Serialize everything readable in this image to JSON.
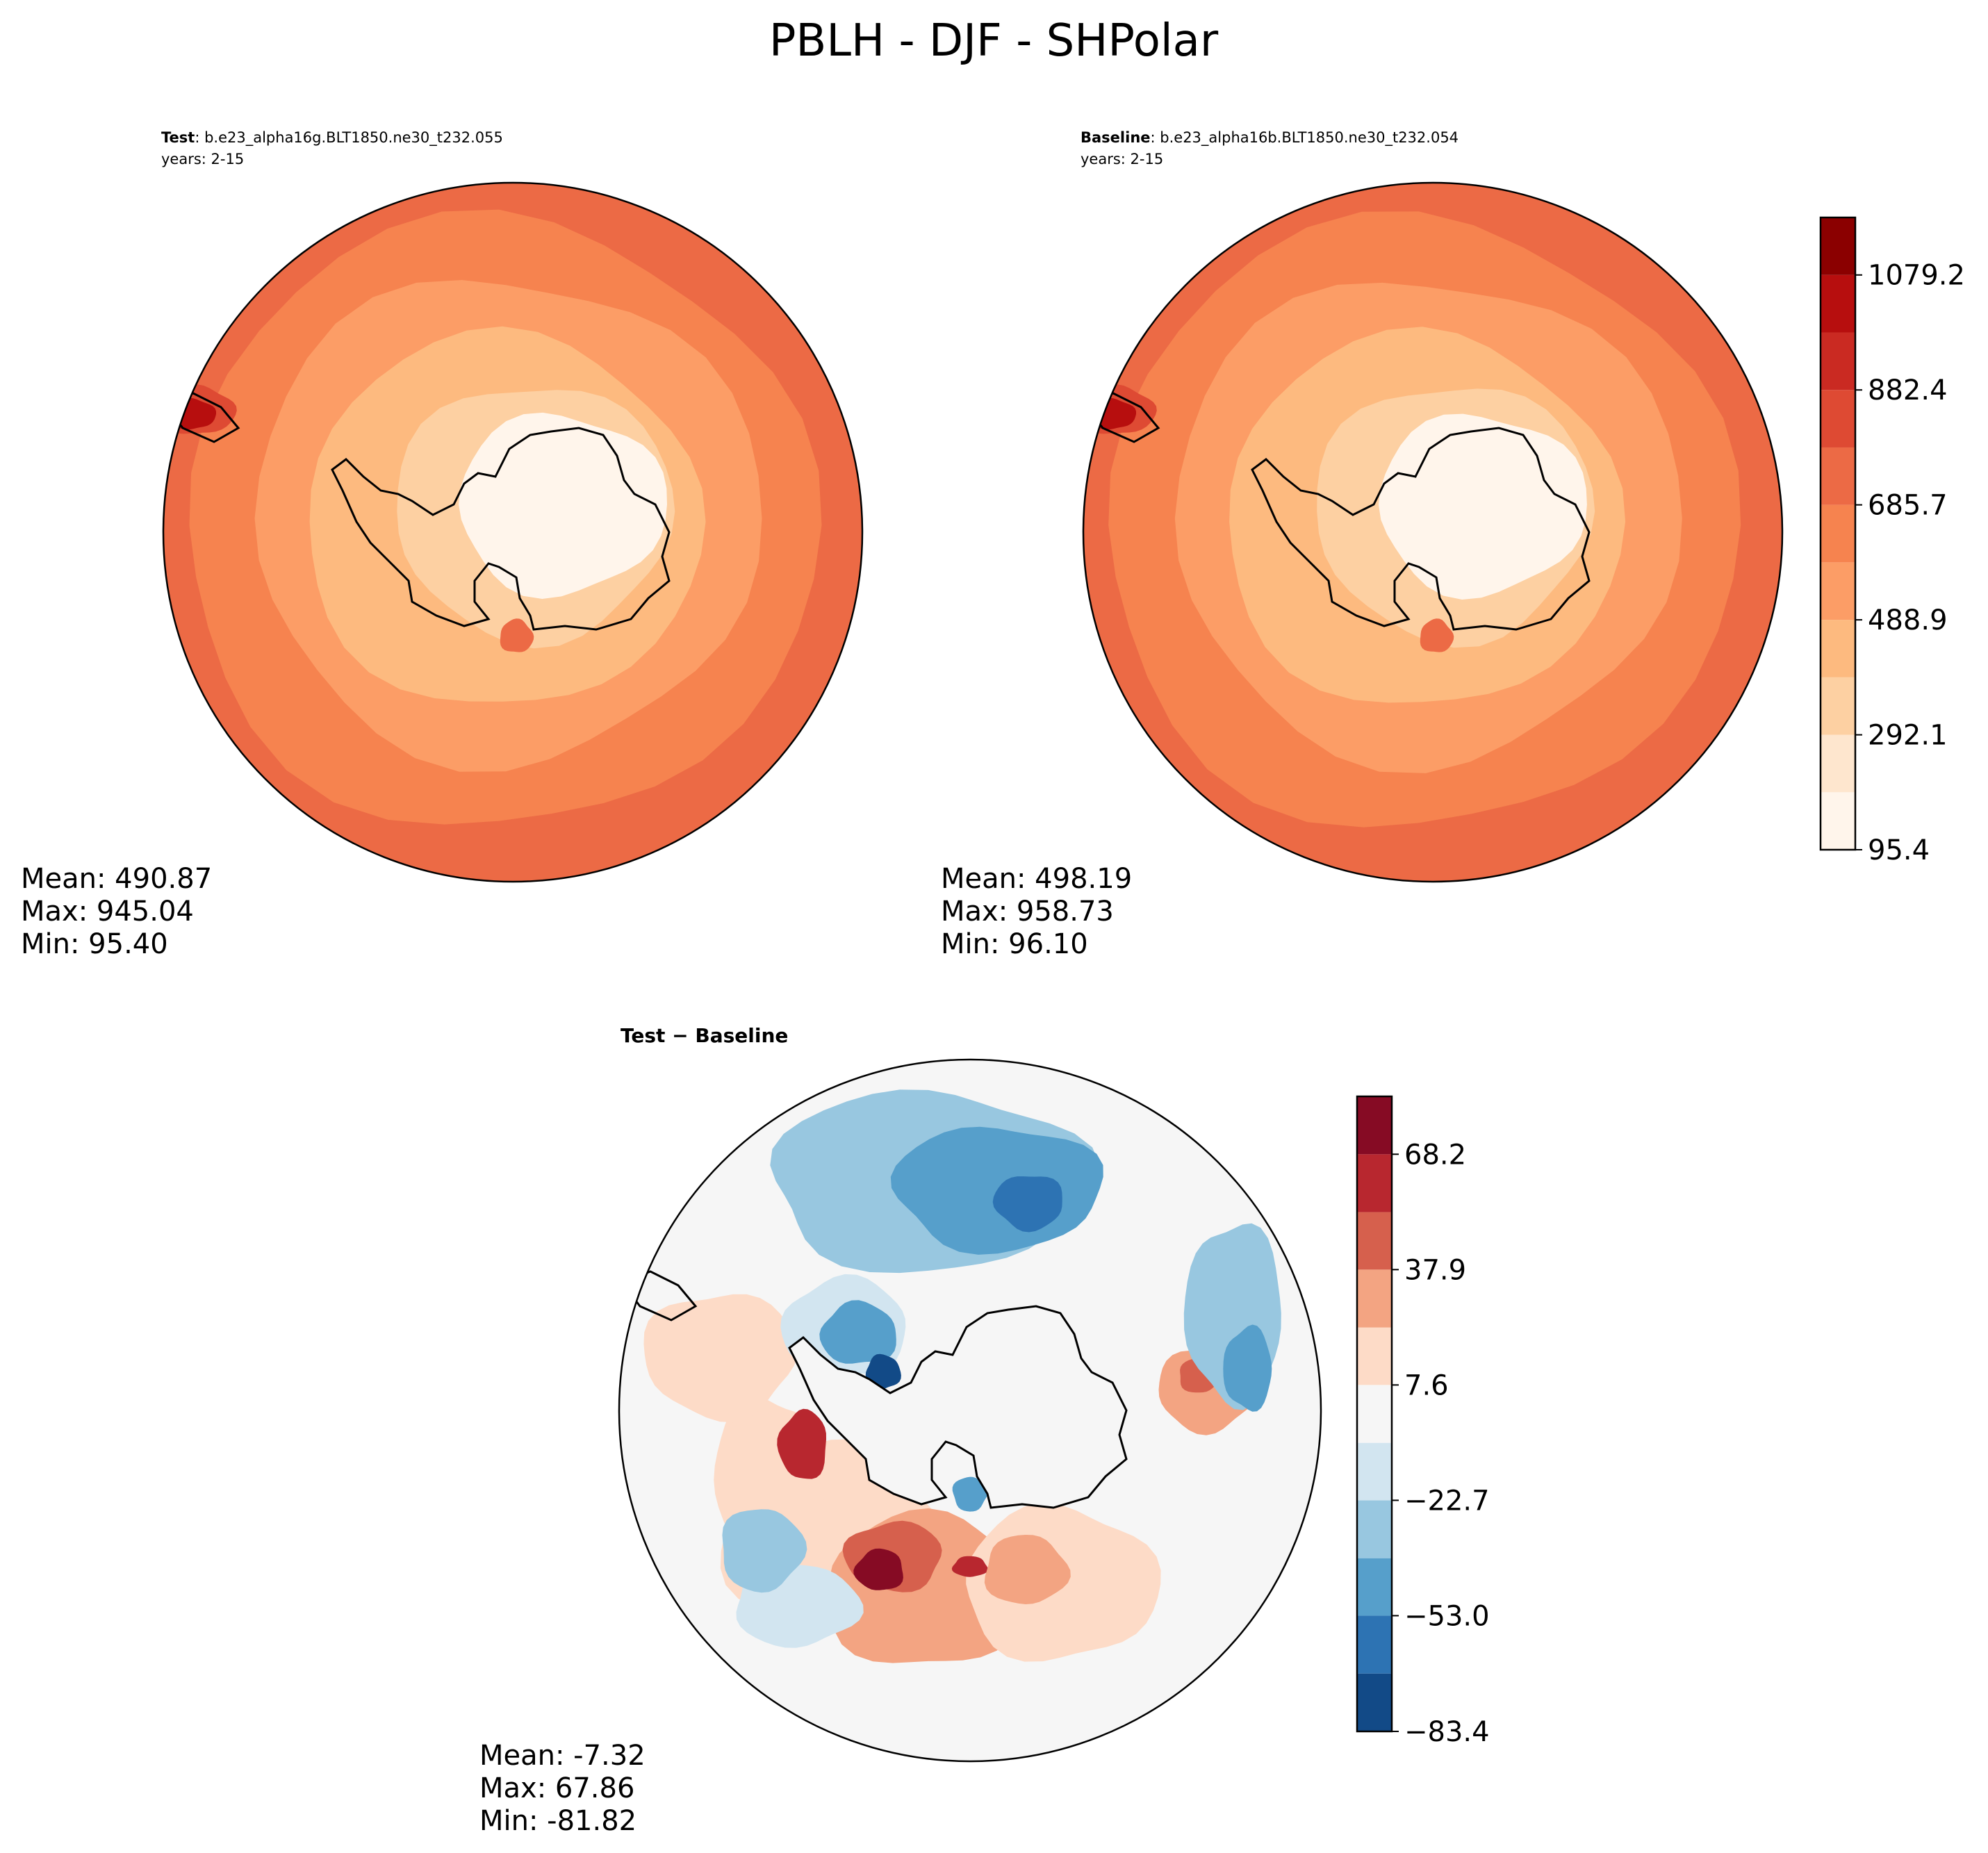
{
  "figure_title": "PBLH - DJF - SHPolar",
  "panels": [
    {
      "id": "test",
      "label_bold": "Test",
      "label_rest": ": b.e23_alpha16g.BLT1850.ne30_t232.055",
      "years": "years: 2-15",
      "stats": {
        "mean": "Mean: 490.87",
        "max": "Max: 945.04",
        "min": "Min: 95.40"
      }
    },
    {
      "id": "baseline",
      "label_bold": "Baseline",
      "label_rest": ": b.e23_alpha16b.BLT1850.ne30_t232.054",
      "years": "years: 2-15",
      "stats": {
        "mean": "Mean: 498.19",
        "max": "Max: 958.73",
        "min": "Min: 96.10"
      }
    },
    {
      "id": "diff",
      "label_bold": "Test − Baseline",
      "stats": {
        "mean": "Mean: -7.32",
        "max": "Max: 67.86",
        "min": "Min: -81.82"
      }
    }
  ],
  "chart_data": [
    {
      "type": "heatmap",
      "projection": "south-polar-stereographic",
      "variable": "PBLH",
      "season": "DJF",
      "region": "SHPolar",
      "panel": "Test",
      "case": "b.e23_alpha16g.BLT1850.ne30_t232.055",
      "mean": 490.87,
      "max": 945.04,
      "min": 95.4
    },
    {
      "type": "heatmap",
      "projection": "south-polar-stereographic",
      "variable": "PBLH",
      "season": "DJF",
      "region": "SHPolar",
      "panel": "Baseline",
      "case": "b.e23_alpha16b.BLT1850.ne30_t232.054",
      "mean": 498.19,
      "max": 958.73,
      "min": 96.1
    },
    {
      "type": "heatmap",
      "projection": "south-polar-stereographic",
      "variable": "PBLH difference",
      "panel": "Test − Baseline",
      "mean": -7.32,
      "max": 67.86,
      "min": -81.82
    }
  ],
  "colorbars": {
    "main": {
      "levels": [
        95.4,
        193.8,
        292.1,
        390.5,
        488.9,
        587.3,
        685.7,
        784.0,
        882.4,
        980.8,
        1079.2,
        1177.6
      ],
      "tick_labels": [
        "95.4",
        "292.1",
        "488.9",
        "685.7",
        "882.4",
        "1079.2"
      ],
      "colors": [
        "#fff5eb",
        "#fee6ce",
        "#fdd0a2",
        "#fdba7f",
        "#fc9d66",
        "#f6834f",
        "#ec6a45",
        "#de4a33",
        "#ca2a22",
        "#b70e0e",
        "#8b0000"
      ]
    },
    "diff": {
      "levels": [
        -83.4,
        -68.2,
        -53.0,
        -37.9,
        -22.7,
        -7.6,
        7.6,
        22.7,
        37.9,
        53.0,
        68.2,
        83.4
      ],
      "tick_labels": [
        "−83.4",
        "−53.0",
        "−22.7",
        "7.6",
        "37.9",
        "68.2"
      ],
      "colors": [
        "#124a87",
        "#2d73b3",
        "#569fcb",
        "#98c7e0",
        "#d2e5f0",
        "#f6f6f6",
        "#fddbc7",
        "#f3a482",
        "#d6604d",
        "#b8272f",
        "#860b24"
      ]
    }
  },
  "colors": {
    "coast": "#000000",
    "continent": "#fef6ea",
    "diff_continent": "#f6f6f6"
  }
}
